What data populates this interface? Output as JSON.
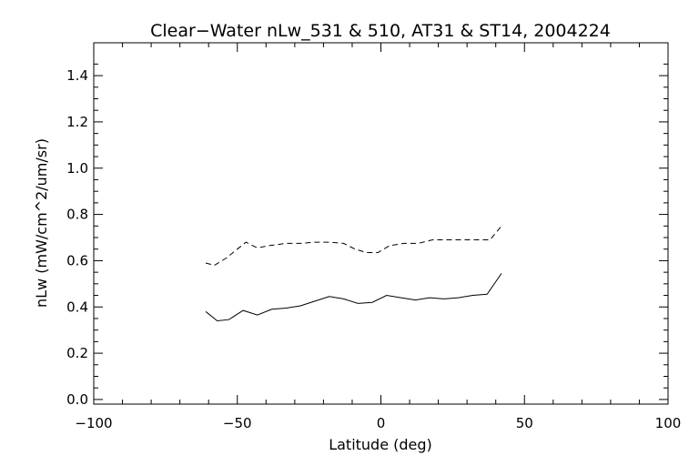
{
  "chart_data": {
    "type": "line",
    "title": "Clear−Water nLw_531 & 510, AT31 & ST14, 2004224",
    "xlabel": "Latitude (deg)",
    "ylabel": "nLw (mW/cm^2/um/sr)",
    "xlim": [
      -100,
      100
    ],
    "ylim": [
      0.0,
      1.5
    ],
    "xticks": [
      "−100",
      "−50",
      "0",
      "50",
      "100"
    ],
    "yticks": [
      "0.0",
      "0.2",
      "0.4",
      "0.6",
      "0.8",
      "1.0",
      "1.2",
      "1.4"
    ],
    "grid": false,
    "legend": "none",
    "series": [
      {
        "style": "dashed",
        "color": "#000000",
        "x": [
          -61,
          -58,
          -54,
          -50,
          -47,
          -43,
          -39,
          -33,
          -28,
          -23,
          -18,
          -13,
          -9,
          -5,
          -1,
          3,
          8,
          13,
          18,
          23,
          28,
          33,
          38,
          42
        ],
        "y": [
          0.59,
          0.58,
          0.61,
          0.65,
          0.68,
          0.655,
          0.665,
          0.675,
          0.675,
          0.68,
          0.68,
          0.675,
          0.65,
          0.635,
          0.635,
          0.665,
          0.675,
          0.675,
          0.69,
          0.69,
          0.69,
          0.69,
          0.69,
          0.75
        ]
      },
      {
        "style": "solid",
        "color": "#000000",
        "x": [
          -61,
          -57,
          -53,
          -48,
          -43,
          -38,
          -33,
          -28,
          -23,
          -18,
          -13,
          -8,
          -3,
          2,
          7,
          12,
          17,
          22,
          27,
          32,
          37,
          42
        ],
        "y": [
          0.38,
          0.34,
          0.345,
          0.385,
          0.365,
          0.39,
          0.395,
          0.405,
          0.425,
          0.445,
          0.435,
          0.415,
          0.42,
          0.45,
          0.44,
          0.43,
          0.44,
          0.435,
          0.44,
          0.45,
          0.455,
          0.545
        ]
      }
    ]
  }
}
